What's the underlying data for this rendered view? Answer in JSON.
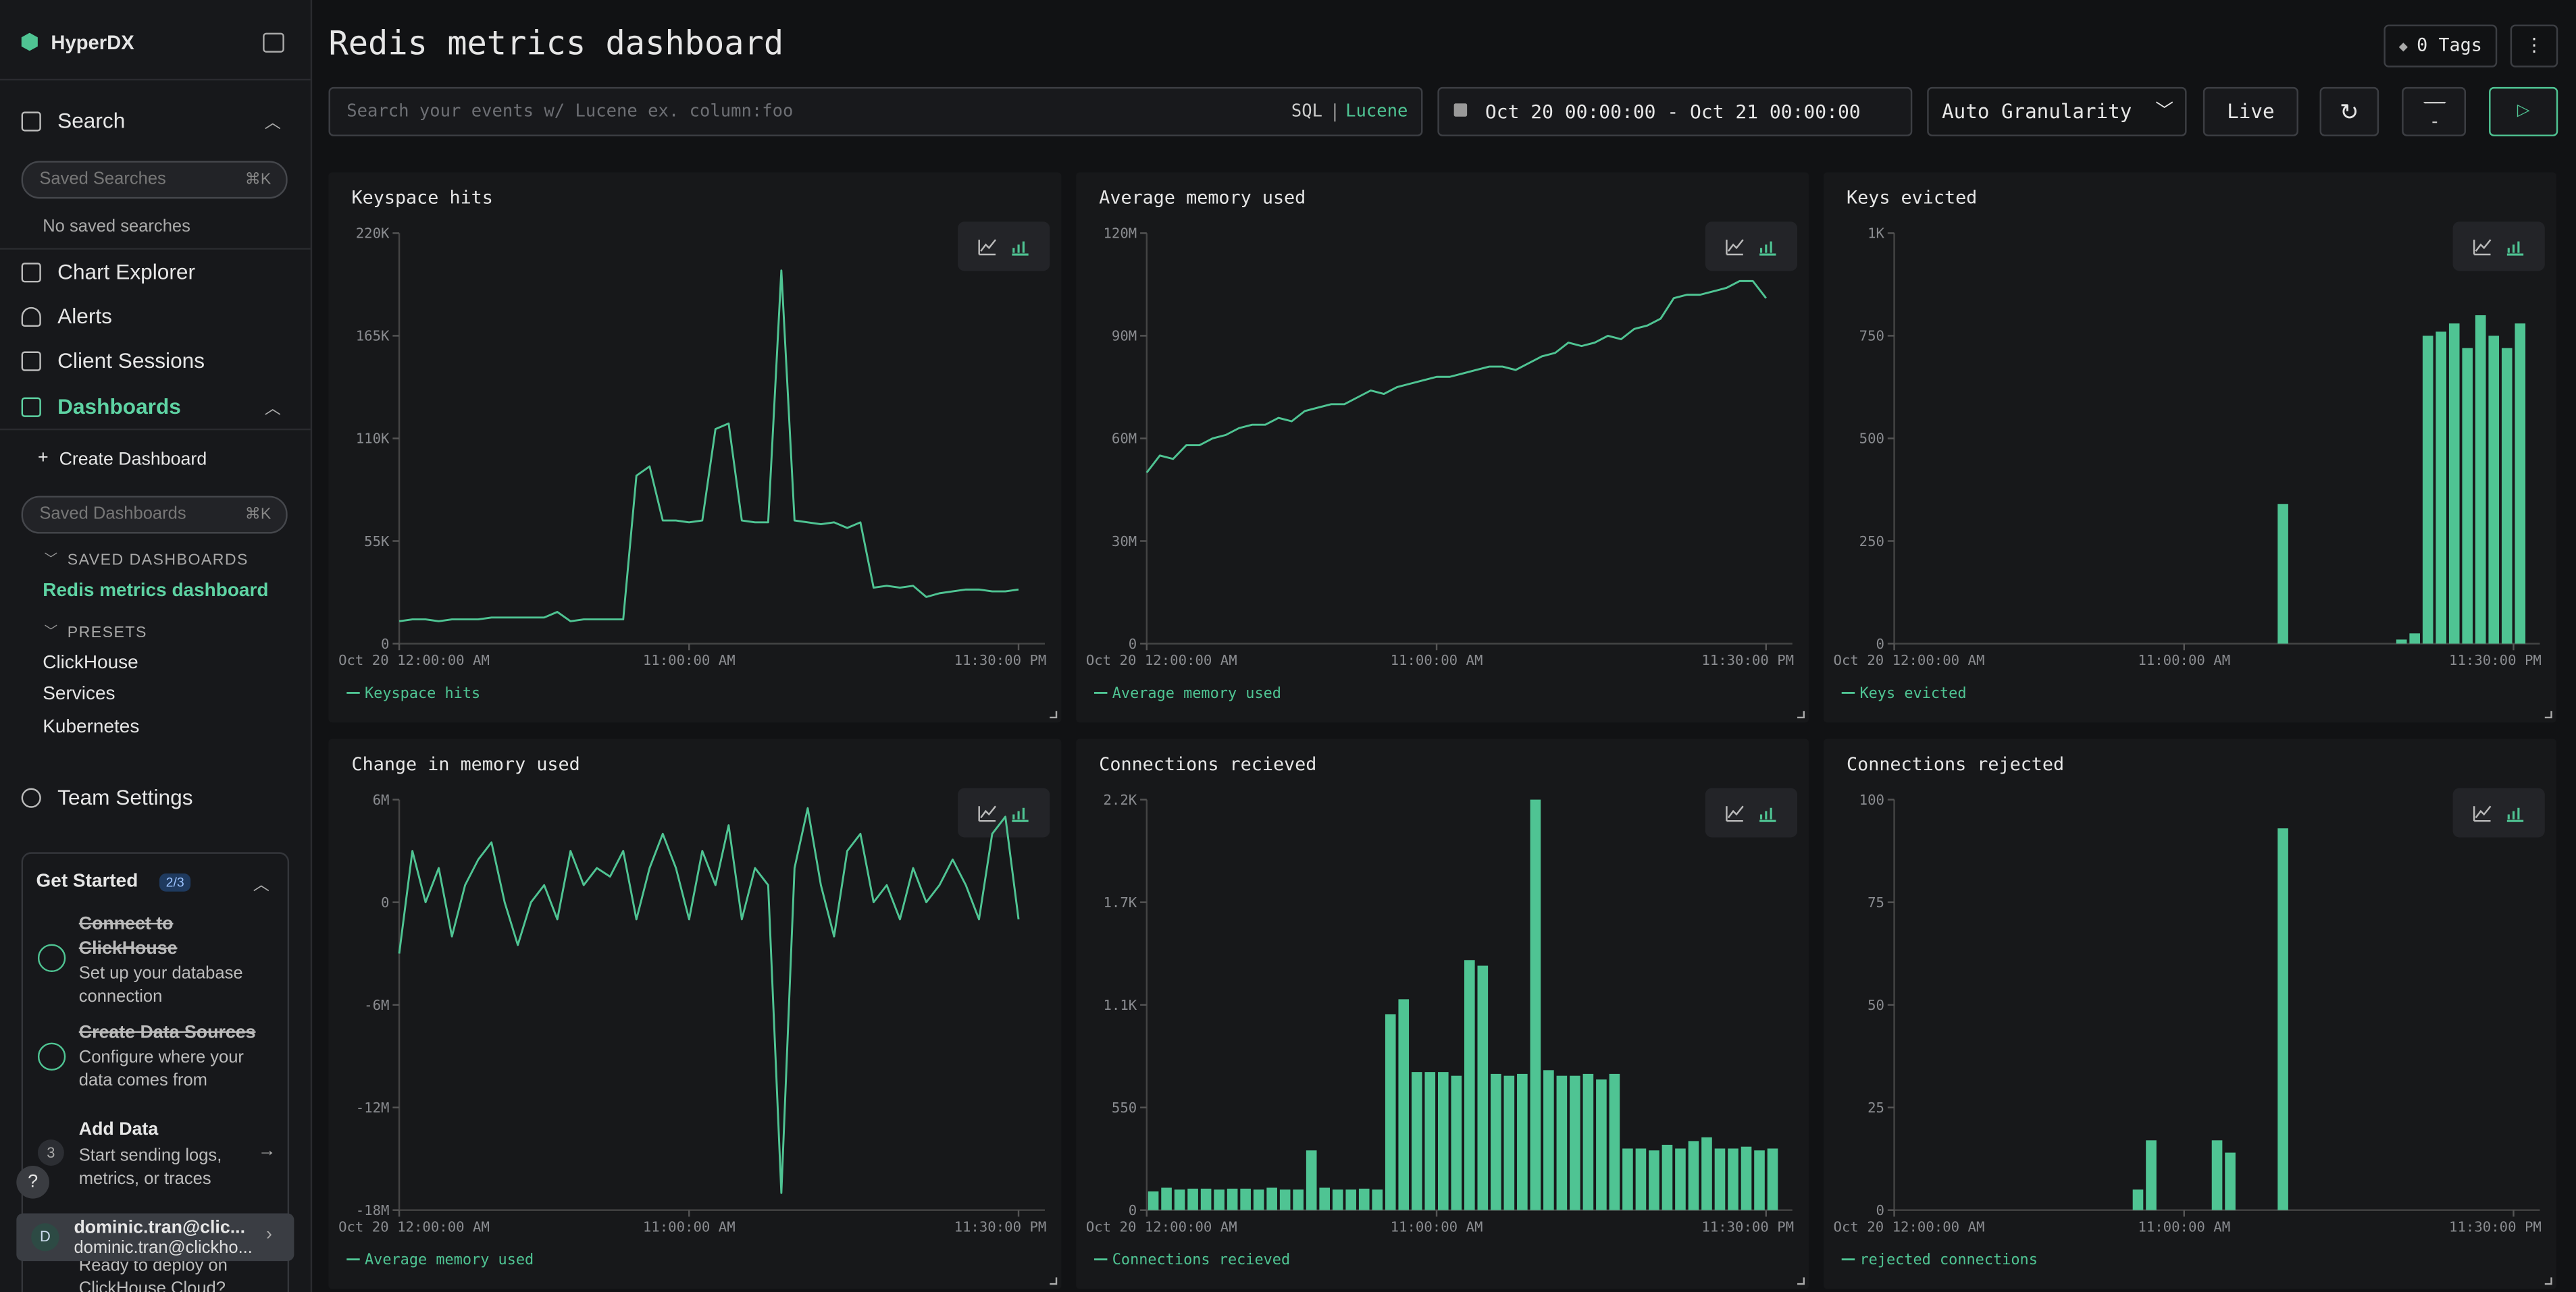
{
  "sidebar": {
    "brand": "HyperDX",
    "search": "Search",
    "saved_searches_placeholder": "Saved Searches",
    "shortcut": "⌘K",
    "no_saved": "No saved searches",
    "nav": [
      "Chart Explorer",
      "Alerts",
      "Client Sessions"
    ],
    "dashboards": "Dashboards",
    "create_dashboard": "Create Dashboard",
    "saved_dashboards_placeholder": "Saved Dashboards",
    "saved_dashboards_heading": "SAVED DASHBOARDS",
    "saved_dashboards": [
      "Redis metrics dashboard"
    ],
    "presets_heading": "PRESETS",
    "presets": [
      "ClickHouse",
      "Services",
      "Kubernetes"
    ],
    "team_settings": "Team Settings",
    "get_started": {
      "title": "Get Started",
      "progress": "2/3",
      "steps": [
        {
          "title": "Connect to ClickHouse",
          "description": "Set up your database connection"
        },
        {
          "title": "Create Data Sources",
          "description": "Configure where your data comes from"
        },
        {
          "number": 3,
          "title": "Add Data",
          "description": "Start sending logs, metrics, or traces"
        }
      ],
      "footer": "Ready to deploy on ClickHouse Cloud?"
    },
    "help": "?",
    "user": {
      "initial": "D",
      "name": "dominic.tran@clic...",
      "email": "dominic.tran@clickho..."
    }
  },
  "header": {
    "title": "Redis metrics dashboard",
    "tags": "0 Tags"
  },
  "toolbar": {
    "search_placeholder": "Search your events w/ Lucene ex. column:foo",
    "sql": "SQL",
    "lucene": "Lucene",
    "time_range": "Oct 20 00:00:00 - Oct 21 00:00:00",
    "granularity": "Auto Granularity",
    "live": "Live"
  },
  "chart_data": [
    {
      "type": "line",
      "title": "Keyspace hits",
      "x": [
        0,
        0.5,
        1,
        1.5,
        2,
        2.5,
        3,
        3.5,
        4,
        4.5,
        5,
        5.5,
        6,
        6.5,
        7,
        7.5,
        8,
        8.5,
        9,
        9.5,
        10,
        10.5,
        11,
        11.5,
        12,
        12.5,
        13,
        13.5,
        14,
        14.5,
        15,
        15.5,
        16,
        16.5,
        17,
        17.5,
        18,
        18.5,
        19,
        19.5,
        20,
        20.5,
        21,
        21.5,
        22,
        22.5,
        23,
        23.5
      ],
      "series": [
        {
          "name": "Keyspace hits",
          "color": "#4fc493",
          "values": [
            12000,
            13000,
            13000,
            12000,
            13000,
            13000,
            13000,
            14000,
            14000,
            14000,
            14000,
            14000,
            17000,
            12000,
            13000,
            13000,
            13000,
            13000,
            90000,
            95000,
            66000,
            66000,
            65000,
            66000,
            115000,
            118000,
            66000,
            65000,
            65000,
            200000,
            66000,
            65000,
            64000,
            65000,
            62000,
            65000,
            30000,
            31000,
            30000,
            31000,
            25000,
            27000,
            28000,
            29000,
            29000,
            28000,
            28000,
            29000
          ]
        }
      ],
      "xlim": [
        0,
        24
      ],
      "xticks": [
        {
          "value": 0,
          "label": "Oct 20 12:00:00 AM"
        },
        {
          "value": 11,
          "label": "11:00:00 AM"
        },
        {
          "value": 23.5,
          "label": "11:30:00 PM"
        }
      ],
      "ylim": [
        0,
        220000
      ],
      "yticks": [
        0,
        {
          "value": 55000,
          "label": "55K"
        },
        {
          "value": 110000,
          "label": "110K"
        },
        {
          "value": 165000,
          "label": "165K"
        },
        {
          "value": 220000,
          "label": "220K"
        }
      ]
    },
    {
      "type": "line",
      "title": "Average memory used",
      "x": [
        0,
        0.5,
        1,
        1.5,
        2,
        2.5,
        3,
        3.5,
        4,
        4.5,
        5,
        5.5,
        6,
        6.5,
        7,
        7.5,
        8,
        8.5,
        9,
        9.5,
        10,
        10.5,
        11,
        11.5,
        12,
        12.5,
        13,
        13.5,
        14,
        14.5,
        15,
        15.5,
        16,
        16.5,
        17,
        17.5,
        18,
        18.5,
        19,
        19.5,
        20,
        20.5,
        21,
        21.5,
        22,
        22.5,
        23,
        23.5
      ],
      "series": [
        {
          "name": "Average memory used",
          "color": "#4fc493",
          "values": [
            50000000,
            55000000,
            54000000,
            58000000,
            58000000,
            60000000,
            61000000,
            63000000,
            64000000,
            64000000,
            66000000,
            65000000,
            68000000,
            69000000,
            70000000,
            70000000,
            72000000,
            74000000,
            73000000,
            75000000,
            76000000,
            77000000,
            78000000,
            78000000,
            79000000,
            80000000,
            81000000,
            81000000,
            80000000,
            82000000,
            84000000,
            85000000,
            88000000,
            87000000,
            88000000,
            90000000,
            89000000,
            92000000,
            93000000,
            95000000,
            101000000,
            102000000,
            102000000,
            103000000,
            104000000,
            106000000,
            106000000,
            101000000
          ]
        }
      ],
      "xlim": [
        0,
        24
      ],
      "xticks": [
        {
          "value": 0,
          "label": "Oct 20 12:00:00 AM"
        },
        {
          "value": 11,
          "label": "11:00:00 AM"
        },
        {
          "value": 23.5,
          "label": "11:30:00 PM"
        }
      ],
      "ylim": [
        0,
        120000000
      ],
      "yticks": [
        0,
        {
          "value": 30000000,
          "label": "30M"
        },
        {
          "value": 60000000,
          "label": "60M"
        },
        {
          "value": 90000000,
          "label": "90M"
        },
        {
          "value": 120000000,
          "label": "120M"
        }
      ]
    },
    {
      "type": "bar",
      "title": "Keys evicted",
      "x": [
        0,
        0.5,
        1,
        1.5,
        2,
        2.5,
        3,
        3.5,
        4,
        4.5,
        5,
        5.5,
        6,
        6.5,
        7,
        7.5,
        8,
        8.5,
        9,
        9.5,
        10,
        10.5,
        11,
        11.5,
        12,
        12.5,
        13,
        13.5,
        14,
        14.5,
        15,
        15.5,
        16,
        16.5,
        17,
        17.5,
        18,
        18.5,
        19,
        19.5,
        20,
        20.5,
        21,
        21.5,
        22,
        22.5,
        23,
        23.5
      ],
      "series": [
        {
          "name": "Keys evicted",
          "color": "#4fc493",
          "values": [
            0,
            0,
            0,
            0,
            0,
            0,
            0,
            0,
            0,
            0,
            0,
            0,
            0,
            0,
            0,
            0,
            0,
            0,
            0,
            0,
            0,
            0,
            0,
            0,
            0,
            0,
            0,
            0,
            0,
            340,
            0,
            0,
            0,
            0,
            0,
            0,
            0,
            0,
            10,
            25,
            750,
            760,
            780,
            720,
            800,
            750,
            720,
            780
          ]
        }
      ],
      "xlim": [
        0,
        24
      ],
      "xticks": [
        {
          "value": 0,
          "label": "Oct 20 12:00:00 AM"
        },
        {
          "value": 11,
          "label": "11:00:00 AM"
        },
        {
          "value": 23.5,
          "label": "11:30:00 PM"
        }
      ],
      "ylim": [
        0,
        1000
      ],
      "yticks": [
        0,
        250,
        500,
        750,
        {
          "value": 1000,
          "label": "1K"
        }
      ]
    },
    {
      "type": "line",
      "title": "Change in memory used",
      "x": [
        0,
        0.5,
        1,
        1.5,
        2,
        2.5,
        3,
        3.5,
        4,
        4.5,
        5,
        5.5,
        6,
        6.5,
        7,
        7.5,
        8,
        8.5,
        9,
        9.5,
        10,
        10.5,
        11,
        11.5,
        12,
        12.5,
        13,
        13.5,
        14,
        14.5,
        15,
        15.5,
        16,
        16.5,
        17,
        17.5,
        18,
        18.5,
        19,
        19.5,
        20,
        20.5,
        21,
        21.5,
        22,
        22.5,
        23,
        23.5
      ],
      "series": [
        {
          "name": "Average memory used",
          "color": "#4fc493",
          "values": [
            -3000000,
            3000000,
            0,
            2000000,
            -2000000,
            1000000,
            2500000,
            3500000,
            0,
            -2500000,
            0,
            1000000,
            -1000000,
            3000000,
            1000000,
            2000000,
            1500000,
            3000000,
            -1000000,
            2000000,
            4000000,
            2000000,
            -1000000,
            3000000,
            1000000,
            4500000,
            -1000000,
            2000000,
            1000000,
            -17000000,
            2000000,
            5500000,
            1000000,
            -2000000,
            3000000,
            4000000,
            0,
            1000000,
            -1000000,
            2000000,
            0,
            1000000,
            2500000,
            1000000,
            -1000000,
            4000000,
            5000000,
            -1000000
          ]
        }
      ],
      "xlim": [
        0,
        24
      ],
      "xticks": [
        {
          "value": 0,
          "label": "Oct 20 12:00:00 AM"
        },
        {
          "value": 11,
          "label": "11:00:00 AM"
        },
        {
          "value": 23.5,
          "label": "11:30:00 PM"
        }
      ],
      "ylim": [
        -18000000,
        6000000
      ],
      "yticks": [
        {
          "value": -18000000,
          "label": "-18M"
        },
        {
          "value": -12000000,
          "label": "-12M"
        },
        {
          "value": -6000000,
          "label": "-6M"
        },
        0,
        {
          "value": 6000000,
          "label": "6M"
        }
      ]
    },
    {
      "type": "bar",
      "title": "Connections recieved",
      "x": [
        0,
        0.5,
        1,
        1.5,
        2,
        2.5,
        3,
        3.5,
        4,
        4.5,
        5,
        5.5,
        6,
        6.5,
        7,
        7.5,
        8,
        8.5,
        9,
        9.5,
        10,
        10.5,
        11,
        11.5,
        12,
        12.5,
        13,
        13.5,
        14,
        14.5,
        15,
        15.5,
        16,
        16.5,
        17,
        17.5,
        18,
        18.5,
        19,
        19.5,
        20,
        20.5,
        21,
        21.5,
        22,
        22.5,
        23,
        23.5
      ],
      "series": [
        {
          "name": "Connections recieved",
          "color": "#4fc493",
          "values": [
            100,
            120,
            110,
            115,
            115,
            110,
            115,
            115,
            110,
            120,
            110,
            110,
            320,
            120,
            110,
            110,
            115,
            110,
            1050,
            1130,
            740,
            740,
            740,
            720,
            1340,
            1310,
            730,
            720,
            730,
            2200,
            750,
            720,
            720,
            730,
            700,
            730,
            330,
            330,
            320,
            350,
            330,
            370,
            390,
            330,
            330,
            340,
            320,
            330
          ]
        }
      ],
      "xlim": [
        0,
        24
      ],
      "xticks": [
        {
          "value": 0,
          "label": "Oct 20 12:00:00 AM"
        },
        {
          "value": 11,
          "label": "11:00:00 AM"
        },
        {
          "value": 23.5,
          "label": "11:30:00 PM"
        }
      ],
      "ylim": [
        0,
        2200
      ],
      "yticks": [
        0,
        550,
        {
          "value": 1100,
          "label": "1.1K"
        },
        {
          "value": 1650,
          "label": "1.7K"
        },
        {
          "value": 2200,
          "label": "2.2K"
        }
      ]
    },
    {
      "type": "bar",
      "title": "Connections rejected",
      "x": [
        0,
        0.5,
        1,
        1.5,
        2,
        2.5,
        3,
        3.5,
        4,
        4.5,
        5,
        5.5,
        6,
        6.5,
        7,
        7.5,
        8,
        8.5,
        9,
        9.5,
        10,
        10.5,
        11,
        11.5,
        12,
        12.5,
        13,
        13.5,
        14,
        14.5,
        15,
        15.5,
        16,
        16.5,
        17,
        17.5,
        18,
        18.5,
        19,
        19.5,
        20,
        20.5,
        21,
        21.5,
        22,
        22.5,
        23,
        23.5
      ],
      "series": [
        {
          "name": "rejected connections",
          "color": "#4fc493",
          "values": [
            0,
            0,
            0,
            0,
            0,
            0,
            0,
            0,
            0,
            0,
            0,
            0,
            0,
            0,
            0,
            0,
            0,
            0,
            5,
            17,
            0,
            0,
            0,
            0,
            17,
            14,
            0,
            0,
            0,
            93,
            0,
            0,
            0,
            0,
            0,
            0,
            0,
            0,
            0,
            0,
            0,
            0,
            0,
            0,
            0,
            0,
            0,
            0
          ]
        }
      ],
      "xlim": [
        0,
        24
      ],
      "xticks": [
        {
          "value": 0,
          "label": "Oct 20 12:00:00 AM"
        },
        {
          "value": 11,
          "label": "11:00:00 AM"
        },
        {
          "value": 23.5,
          "label": "11:30:00 PM"
        }
      ],
      "ylim": [
        0,
        100
      ],
      "yticks": [
        0,
        25,
        50,
        75,
        100
      ]
    }
  ]
}
